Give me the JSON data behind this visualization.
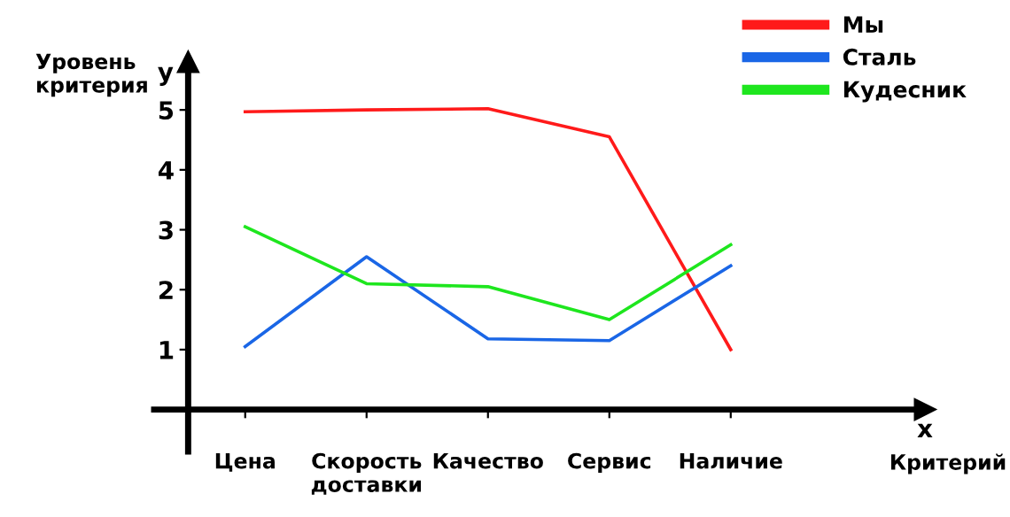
{
  "chart_data": {
    "type": "line",
    "xlabel": "Критерий",
    "ylabel": "Уровень\nкритерия",
    "annotations": [
      "y",
      "x"
    ],
    "categories": [
      "Цена",
      "Скорость\nдоставки",
      "Качество",
      "Сервис",
      "Наличие"
    ],
    "series": [
      {
        "name": "Мы",
        "color": "#ff1a1a",
        "values": [
          4.97,
          5.0,
          5.02,
          4.55,
          1.0
        ]
      },
      {
        "name": "Сталь",
        "color": "#1a66e6",
        "values": [
          1.05,
          2.55,
          1.18,
          1.15,
          2.4
        ]
      },
      {
        "name": "Кудесник",
        "color": "#1ee61e",
        "values": [
          3.05,
          2.1,
          2.05,
          1.5,
          2.75
        ]
      }
    ],
    "ylim": [
      -0.7,
      5.8
    ],
    "yticks": [
      1,
      2,
      3,
      4,
      5
    ],
    "grid": false,
    "legend": "top right",
    "marker": "none",
    "line_style": "solid"
  }
}
